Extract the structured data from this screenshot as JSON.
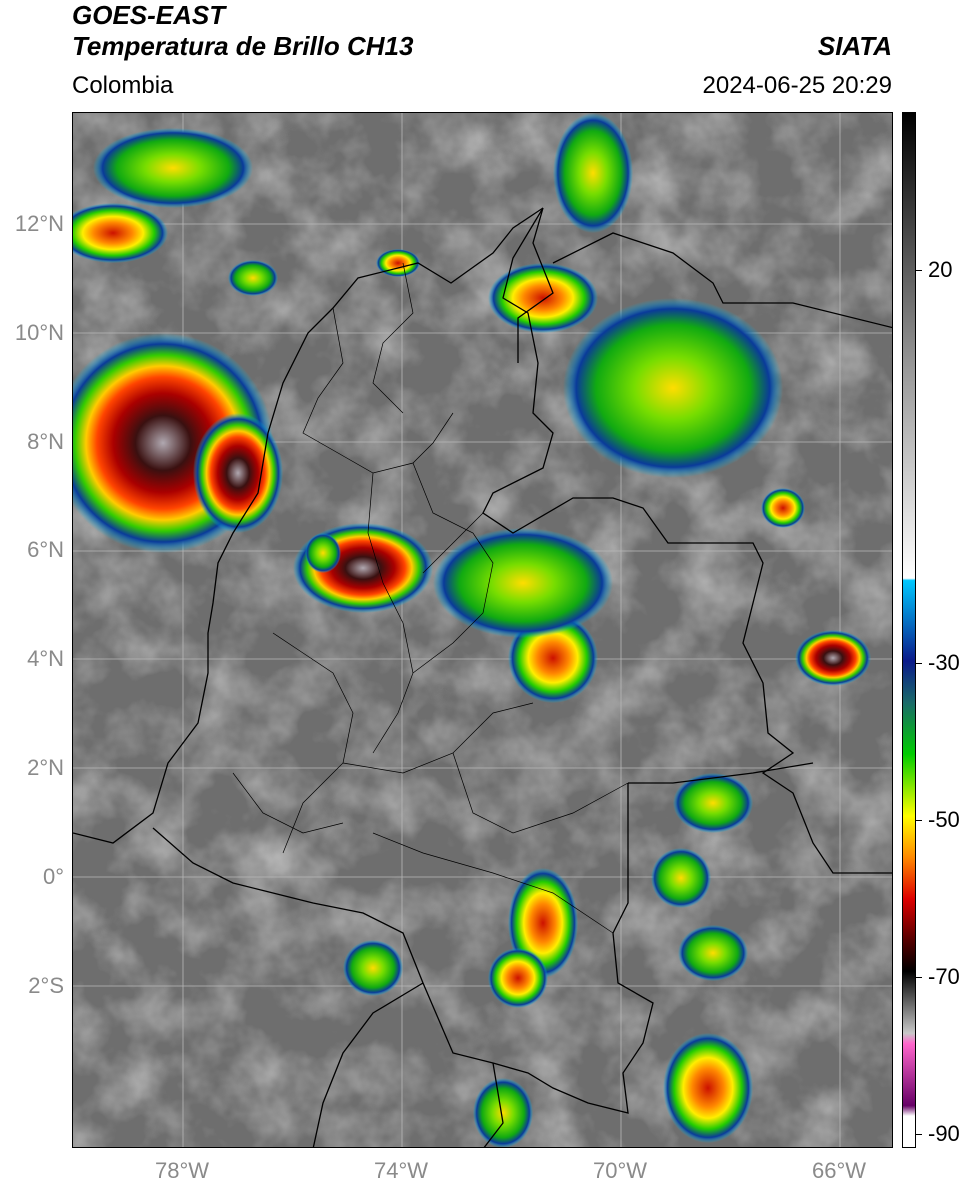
{
  "header": {
    "title_line1": "GOES-EAST",
    "title_line2": "Temperatura de Brillo CH13",
    "brand": "SIATA",
    "region": "Colombia",
    "timestamp": "2024-06-25 20:29"
  },
  "map": {
    "lat_labels": [
      "12°N",
      "10°N",
      "8°N",
      "6°N",
      "4°N",
      "2°N",
      "0°",
      "2°S"
    ],
    "lon_labels": [
      "78°W",
      "74°W",
      "70°W",
      "66°W"
    ],
    "background_color": "#7a7a7a",
    "border_color": "#000000",
    "grid_color": "#b0b0b0"
  },
  "colorbar": {
    "labels": [
      "20",
      "-30",
      "-50",
      "-70",
      "-90"
    ],
    "stops": [
      {
        "offset": 0.0,
        "color": "#000000"
      },
      {
        "offset": 0.25,
        "color": "#9a9a9a"
      },
      {
        "offset": 0.45,
        "color": "#ffffff"
      },
      {
        "offset": 0.452,
        "color": "#00c8ff"
      },
      {
        "offset": 0.53,
        "color": "#0a1a8a"
      },
      {
        "offset": 0.57,
        "color": "#1a6a6a"
      },
      {
        "offset": 0.62,
        "color": "#00cc00"
      },
      {
        "offset": 0.68,
        "color": "#ffff00"
      },
      {
        "offset": 0.72,
        "color": "#ff8800"
      },
      {
        "offset": 0.76,
        "color": "#dd0000"
      },
      {
        "offset": 0.8,
        "color": "#550000"
      },
      {
        "offset": 0.83,
        "color": "#000000"
      },
      {
        "offset": 0.89,
        "color": "#c8c8c8"
      },
      {
        "offset": 0.9,
        "color": "#ff66cc"
      },
      {
        "offset": 0.96,
        "color": "#660066"
      },
      {
        "offset": 0.97,
        "color": "#ffffff"
      },
      {
        "offset": 1.0,
        "color": "#ffffff"
      }
    ]
  }
}
